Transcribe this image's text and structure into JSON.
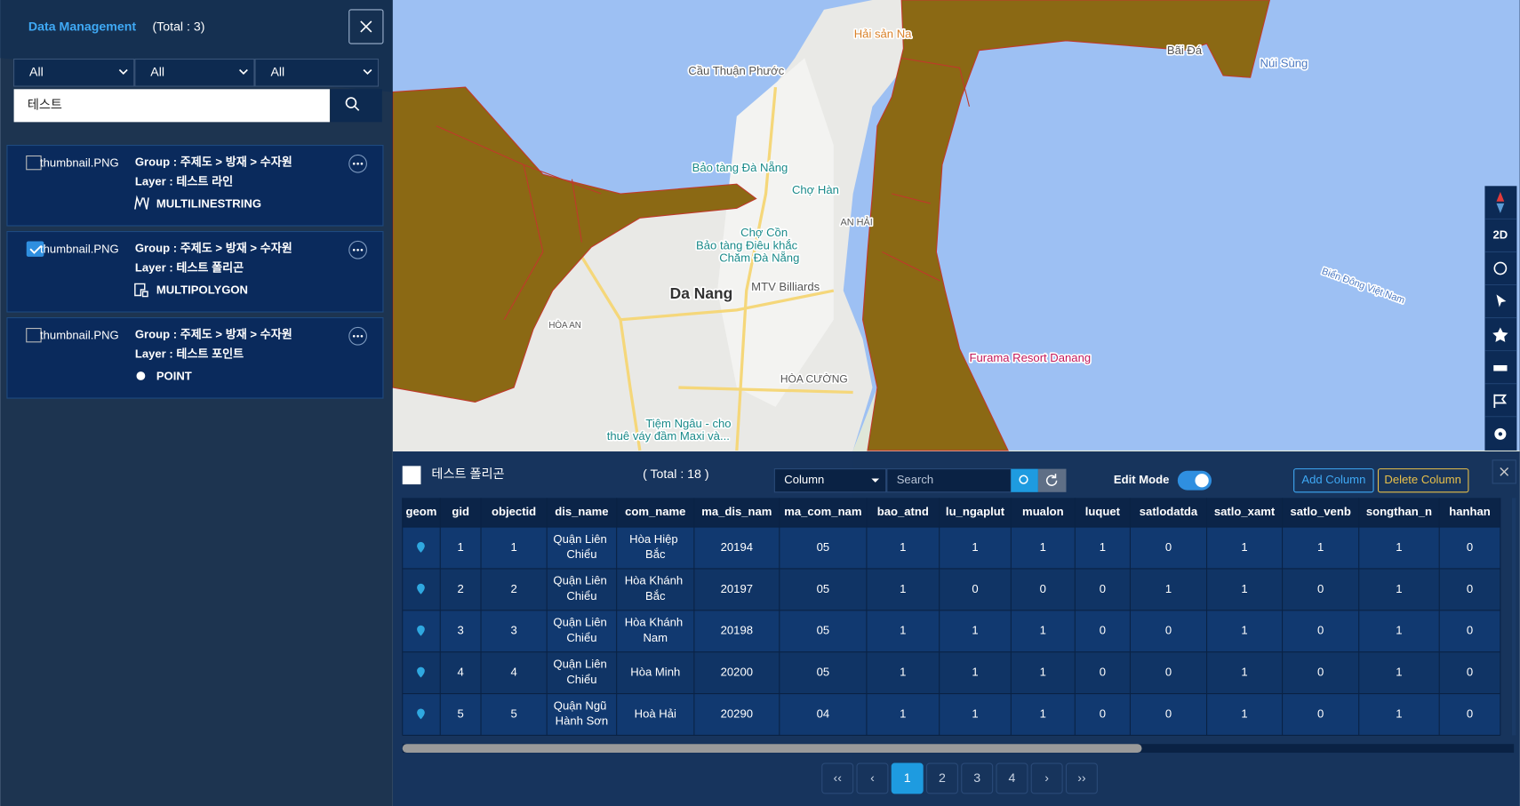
{
  "sidebar": {
    "title": "Data Management",
    "total": "(Total : 3)",
    "filters": [
      "All",
      "All",
      "All"
    ],
    "search": "테스트",
    "items": [
      {
        "thumbnail": "thumbnail.PNG",
        "group": "Group : 주제도 > 방재 > 수자원",
        "layer": "Layer : 테스트 라인",
        "geometry": "MULTILINESTRING",
        "checked": false
      },
      {
        "thumbnail": "thumbnail.PNG",
        "group": "Group : 주제도 > 방재 > 수자원",
        "layer": "Layer : 테스트 폴리곤",
        "geometry": "MULTIPOLYGON",
        "checked": true
      },
      {
        "thumbnail": "thumbnail.PNG",
        "group": "Group : 주제도 > 방재 > 수자원",
        "layer": "Layer : 테스트 포인트",
        "geometry": "POINT",
        "checked": false
      }
    ]
  },
  "map": {
    "labels": [
      "Hải sản Na",
      "Cầu Thuận Phước",
      "Bãi Đá",
      "Núi Sùng",
      "Bảo tàng Đà Nẵng",
      "Chợ Hàn",
      "Chợ Cồn",
      "Bảo tàng Điêu khắc",
      "Chăm Đà Nẵng",
      "Da Nang",
      "MTV Billiards",
      "AN HẢI",
      "HÒA CƯỜNG",
      "Furama Resort Danang",
      "Biển Đông Việt Nam",
      "Tiệm Ngâu - cho",
      "thuê váy đầm Maxi và...",
      "HÒA AN"
    ]
  },
  "toolbar": {
    "view_mode": "2D"
  },
  "table": {
    "layer_name": "테스트 폴리곤",
    "total": "( Total : 18 )",
    "column_select": "Column",
    "search_placeholder": "Search",
    "edit_mode": "Edit Mode",
    "edit_mode_on": true,
    "add_column": "Add Column",
    "delete_column": "Delete Column",
    "columns": [
      "geom",
      "gid",
      "objectid",
      "dis_name",
      "com_name",
      "ma_dis_nam",
      "ma_com_nam",
      "bao_atnd",
      "lu_ngaplut",
      "mualon",
      "luquet",
      "satlodatda",
      "satlo_xamt",
      "satlo_venb",
      "songthan_n",
      "hanhan"
    ],
    "rows": [
      [
        "1",
        "1",
        "Quận Liên Chiểu",
        "Hòa Hiệp Bắc",
        "20194",
        "05",
        "1",
        "1",
        "1",
        "1",
        "0",
        "1",
        "1",
        "1",
        "0"
      ],
      [
        "2",
        "2",
        "Quận Liên Chiểu",
        "Hòa Khánh Bắc",
        "20197",
        "05",
        "1",
        "0",
        "0",
        "0",
        "1",
        "1",
        "0",
        "1",
        "0"
      ],
      [
        "3",
        "3",
        "Quận Liên Chiểu",
        "Hòa Khánh Nam",
        "20198",
        "05",
        "1",
        "1",
        "1",
        "0",
        "0",
        "1",
        "0",
        "1",
        "0"
      ],
      [
        "4",
        "4",
        "Quận Liên Chiểu",
        "Hòa Minh",
        "20200",
        "05",
        "1",
        "1",
        "1",
        "0",
        "0",
        "1",
        "0",
        "1",
        "0"
      ],
      [
        "5",
        "5",
        "Quận Ngũ Hành Sơn",
        "Hoà Hải",
        "20290",
        "04",
        "1",
        "1",
        "1",
        "0",
        "0",
        "1",
        "0",
        "1",
        "0"
      ]
    ],
    "pages": [
      {
        "label": "‹‹",
        "active": false
      },
      {
        "label": "‹",
        "active": false
      },
      {
        "label": "1",
        "active": true
      },
      {
        "label": "2",
        "active": false
      },
      {
        "label": "3",
        "active": false
      },
      {
        "label": "4",
        "active": false
      },
      {
        "label": "›",
        "active": false
      },
      {
        "label": "››",
        "active": false
      }
    ]
  }
}
